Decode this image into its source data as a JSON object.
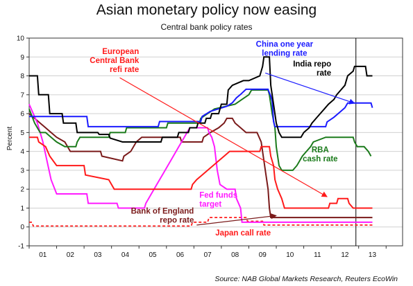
{
  "chart_data": {
    "type": "line",
    "title": "Asian monetary policy now easing",
    "subtitle": "Central bank policy rates",
    "ylabel": "Percent",
    "source": "Source: NAB Global Markets Research, Reuters EcoWin",
    "ylim": [
      -1,
      10
    ],
    "xlim": [
      2000.0,
      2013.6
    ],
    "y_ticks": [
      "-1",
      "0",
      "1",
      "2",
      "3",
      "4",
      "5",
      "6",
      "7",
      "8",
      "9",
      "10"
    ],
    "x_ticks": [
      "01",
      "02",
      "03",
      "04",
      "05",
      "06",
      "07",
      "08",
      "09",
      "10",
      "11",
      "12",
      "13"
    ],
    "vline_x": 2011.9,
    "colors": {
      "india": "#000000",
      "china": "#1a1aff",
      "rba": "#1a7a1a",
      "ecb": "#ff1a1a",
      "fed": "#ff1aff",
      "boe": "#7a1a1a",
      "japan": "#ff1a1a"
    },
    "series": [
      {
        "name": "India repo rate",
        "key": "india",
        "width": 2,
        "dash": "",
        "points": [
          [
            2000.0,
            8.0
          ],
          [
            2000.3,
            8.0
          ],
          [
            2000.35,
            7.0
          ],
          [
            2000.7,
            7.0
          ],
          [
            2000.75,
            6.0
          ],
          [
            2001.2,
            6.0
          ],
          [
            2001.25,
            5.5
          ],
          [
            2001.7,
            5.5
          ],
          [
            2001.75,
            5.0
          ],
          [
            2002.5,
            5.0
          ],
          [
            2002.55,
            4.9
          ],
          [
            2002.9,
            4.9
          ],
          [
            2002.95,
            4.7
          ],
          [
            2003.4,
            4.5
          ],
          [
            2003.9,
            4.5
          ],
          [
            2004.2,
            4.5
          ],
          [
            2004.8,
            4.5
          ],
          [
            2004.85,
            4.75
          ],
          [
            2005.4,
            4.75
          ],
          [
            2005.45,
            5.0
          ],
          [
            2005.8,
            5.0
          ],
          [
            2005.85,
            5.25
          ],
          [
            2006.1,
            5.25
          ],
          [
            2006.15,
            5.5
          ],
          [
            2006.4,
            5.5
          ],
          [
            2006.45,
            5.75
          ],
          [
            2006.6,
            5.75
          ],
          [
            2006.65,
            6.0
          ],
          [
            2006.9,
            6.0
          ],
          [
            2006.95,
            6.25
          ],
          [
            2007.0,
            6.5
          ],
          [
            2007.2,
            6.5
          ],
          [
            2007.25,
            7.25
          ],
          [
            2007.4,
            7.5
          ],
          [
            2007.8,
            7.75
          ],
          [
            2008.0,
            7.75
          ],
          [
            2008.4,
            8.0
          ],
          [
            2008.5,
            8.5
          ],
          [
            2008.55,
            9.0
          ],
          [
            2008.75,
            9.0
          ],
          [
            2008.8,
            7.5
          ],
          [
            2008.9,
            6.5
          ],
          [
            2009.0,
            5.5
          ],
          [
            2009.1,
            5.0
          ],
          [
            2009.2,
            4.75
          ],
          [
            2009.9,
            4.75
          ],
          [
            2010.0,
            5.0
          ],
          [
            2010.2,
            5.25
          ],
          [
            2010.3,
            5.5
          ],
          [
            2010.45,
            5.75
          ],
          [
            2010.6,
            6.0
          ],
          [
            2010.75,
            6.25
          ],
          [
            2010.9,
            6.5
          ],
          [
            2011.1,
            6.75
          ],
          [
            2011.2,
            7.0
          ],
          [
            2011.35,
            7.25
          ],
          [
            2011.5,
            7.5
          ],
          [
            2011.6,
            8.0
          ],
          [
            2011.8,
            8.25
          ],
          [
            2011.85,
            8.5
          ],
          [
            2012.25,
            8.5
          ],
          [
            2012.3,
            8.0
          ],
          [
            2012.5,
            8.0
          ]
        ]
      },
      {
        "name": "China one year lending rate",
        "key": "china",
        "width": 2,
        "dash": "",
        "points": [
          [
            2000.0,
            5.85
          ],
          [
            2001.5,
            5.85
          ],
          [
            2002.1,
            5.85
          ],
          [
            2002.15,
            5.31
          ],
          [
            2004.7,
            5.31
          ],
          [
            2004.75,
            5.58
          ],
          [
            2006.25,
            5.58
          ],
          [
            2006.3,
            5.85
          ],
          [
            2006.6,
            6.12
          ],
          [
            2007.2,
            6.39
          ],
          [
            2007.4,
            6.57
          ],
          [
            2007.55,
            6.84
          ],
          [
            2007.7,
            7.02
          ],
          [
            2007.9,
            7.29
          ],
          [
            2008.7,
            7.29
          ],
          [
            2008.72,
            7.2
          ],
          [
            2008.8,
            6.93
          ],
          [
            2008.85,
            6.66
          ],
          [
            2008.9,
            5.58
          ],
          [
            2008.95,
            5.31
          ],
          [
            2010.8,
            5.31
          ],
          [
            2010.85,
            5.56
          ],
          [
            2011.1,
            5.81
          ],
          [
            2011.3,
            6.06
          ],
          [
            2011.5,
            6.31
          ],
          [
            2011.6,
            6.56
          ],
          [
            2012.45,
            6.56
          ],
          [
            2012.5,
            6.31
          ]
        ]
      },
      {
        "name": "RBA cash rate",
        "key": "rba",
        "width": 2,
        "dash": "",
        "points": [
          [
            2000.0,
            6.25
          ],
          [
            2000.2,
            5.5
          ],
          [
            2000.4,
            5.0
          ],
          [
            2000.6,
            5.0
          ],
          [
            2000.8,
            4.75
          ],
          [
            2001.0,
            4.5
          ],
          [
            2001.3,
            4.25
          ],
          [
            2001.7,
            4.25
          ],
          [
            2001.75,
            4.5
          ],
          [
            2001.85,
            4.75
          ],
          [
            2002.9,
            4.75
          ],
          [
            2002.95,
            5.0
          ],
          [
            2003.5,
            5.0
          ],
          [
            2003.55,
            5.25
          ],
          [
            2005.0,
            5.25
          ],
          [
            2005.05,
            5.5
          ],
          [
            2006.2,
            5.5
          ],
          [
            2006.25,
            5.75
          ],
          [
            2006.5,
            6.0
          ],
          [
            2006.75,
            6.25
          ],
          [
            2007.5,
            6.5
          ],
          [
            2007.75,
            6.75
          ],
          [
            2008.0,
            7.0
          ],
          [
            2008.1,
            7.25
          ],
          [
            2008.7,
            7.25
          ],
          [
            2008.75,
            7.0
          ],
          [
            2008.85,
            6.0
          ],
          [
            2008.95,
            5.25
          ],
          [
            2009.0,
            4.25
          ],
          [
            2009.1,
            3.25
          ],
          [
            2009.2,
            3.0
          ],
          [
            2009.6,
            3.0
          ],
          [
            2009.75,
            3.25
          ],
          [
            2009.85,
            3.5
          ],
          [
            2009.95,
            3.75
          ],
          [
            2010.1,
            4.0
          ],
          [
            2010.25,
            4.25
          ],
          [
            2010.35,
            4.5
          ],
          [
            2010.8,
            4.75
          ],
          [
            2011.8,
            4.75
          ],
          [
            2011.85,
            4.5
          ],
          [
            2011.95,
            4.25
          ],
          [
            2012.2,
            4.25
          ],
          [
            2012.35,
            4.0
          ],
          [
            2012.45,
            3.75
          ]
        ]
      },
      {
        "name": "European Central Bank refi rate",
        "key": "ecb",
        "width": 2,
        "dash": "",
        "points": [
          [
            2000.0,
            4.75
          ],
          [
            2000.3,
            4.75
          ],
          [
            2000.35,
            4.5
          ],
          [
            2000.6,
            4.25
          ],
          [
            2000.75,
            3.75
          ],
          [
            2001.0,
            3.25
          ],
          [
            2002.0,
            3.25
          ],
          [
            2002.05,
            2.75
          ],
          [
            2002.9,
            2.5
          ],
          [
            2003.1,
            2.0
          ],
          [
            2005.9,
            2.0
          ],
          [
            2005.95,
            2.25
          ],
          [
            2006.1,
            2.5
          ],
          [
            2006.3,
            2.75
          ],
          [
            2006.5,
            3.0
          ],
          [
            2006.7,
            3.25
          ],
          [
            2006.9,
            3.5
          ],
          [
            2007.1,
            3.75
          ],
          [
            2007.3,
            4.0
          ],
          [
            2008.4,
            4.0
          ],
          [
            2008.45,
            4.25
          ],
          [
            2008.75,
            4.25
          ],
          [
            2008.8,
            3.75
          ],
          [
            2008.9,
            3.25
          ],
          [
            2008.95,
            2.5
          ],
          [
            2009.05,
            2.0
          ],
          [
            2009.2,
            1.5
          ],
          [
            2009.3,
            1.0
          ],
          [
            2010.9,
            1.0
          ],
          [
            2010.95,
            1.25
          ],
          [
            2011.2,
            1.25
          ],
          [
            2011.25,
            1.5
          ],
          [
            2011.6,
            1.5
          ],
          [
            2011.65,
            1.25
          ],
          [
            2011.8,
            1.0
          ],
          [
            2012.5,
            1.0
          ]
        ]
      },
      {
        "name": "Fed funds target",
        "key": "fed",
        "width": 2,
        "dash": "",
        "points": [
          [
            2000.0,
            6.5
          ],
          [
            2000.3,
            5.5
          ],
          [
            2000.5,
            4.5
          ],
          [
            2000.65,
            3.5
          ],
          [
            2000.8,
            2.5
          ],
          [
            2001.0,
            1.75
          ],
          [
            2001.1,
            1.75
          ],
          [
            2002.1,
            1.75
          ],
          [
            2002.15,
            1.25
          ],
          [
            2003.2,
            1.25
          ],
          [
            2003.25,
            1.0
          ],
          [
            2004.2,
            1.0
          ],
          [
            2004.25,
            1.25
          ],
          [
            2004.45,
            1.75
          ],
          [
            2004.65,
            2.25
          ],
          [
            2004.85,
            2.75
          ],
          [
            2005.05,
            3.25
          ],
          [
            2005.25,
            3.75
          ],
          [
            2005.45,
            4.25
          ],
          [
            2005.65,
            4.75
          ],
          [
            2005.85,
            5.25
          ],
          [
            2006.5,
            5.25
          ],
          [
            2006.55,
            5.0
          ],
          [
            2006.65,
            4.75
          ],
          [
            2006.75,
            4.25
          ],
          [
            2006.85,
            3.0
          ],
          [
            2006.95,
            2.25
          ],
          [
            2007.2,
            2.0
          ],
          [
            2007.5,
            2.0
          ],
          [
            2007.55,
            1.5
          ],
          [
            2007.7,
            1.0
          ],
          [
            2007.75,
            0.25
          ],
          [
            2012.5,
            0.25
          ]
        ]
      },
      {
        "name": "Bank of England repo rate",
        "key": "boe",
        "width": 2,
        "dash": "",
        "points": [
          [
            2000.0,
            6.0
          ],
          [
            2000.2,
            5.75
          ],
          [
            2000.4,
            5.5
          ],
          [
            2000.6,
            5.25
          ],
          [
            2000.8,
            5.0
          ],
          [
            2001.0,
            4.75
          ],
          [
            2001.3,
            4.5
          ],
          [
            2001.5,
            4.0
          ],
          [
            2002.6,
            4.0
          ],
          [
            2002.65,
            3.75
          ],
          [
            2003.4,
            3.5
          ],
          [
            2003.45,
            3.75
          ],
          [
            2003.7,
            4.0
          ],
          [
            2003.9,
            4.5
          ],
          [
            2004.1,
            4.75
          ],
          [
            2005.5,
            4.75
          ],
          [
            2005.55,
            4.5
          ],
          [
            2006.3,
            4.5
          ],
          [
            2006.35,
            4.75
          ],
          [
            2006.6,
            5.0
          ],
          [
            2006.9,
            5.25
          ],
          [
            2007.1,
            5.5
          ],
          [
            2007.2,
            5.75
          ],
          [
            2007.4,
            5.75
          ],
          [
            2007.5,
            5.5
          ],
          [
            2007.7,
            5.25
          ],
          [
            2007.9,
            5.0
          ],
          [
            2008.3,
            5.0
          ],
          [
            2008.45,
            4.5
          ],
          [
            2008.6,
            3.0
          ],
          [
            2008.7,
            2.0
          ],
          [
            2008.75,
            1.0
          ],
          [
            2008.8,
            0.5
          ],
          [
            2012.5,
            0.5
          ]
        ]
      },
      {
        "name": "Japan call rate",
        "key": "japan",
        "width": 1.8,
        "dash": "4,3",
        "points": [
          [
            2000.0,
            0.25
          ],
          [
            2000.1,
            0.25
          ],
          [
            2000.15,
            0.05
          ],
          [
            2005.9,
            0.05
          ],
          [
            2005.95,
            0.25
          ],
          [
            2006.5,
            0.25
          ],
          [
            2006.55,
            0.5
          ],
          [
            2007.9,
            0.5
          ],
          [
            2007.95,
            0.3
          ],
          [
            2008.5,
            0.3
          ],
          [
            2008.55,
            0.1
          ],
          [
            2012.5,
            0.1
          ]
        ]
      }
    ],
    "annotations": [
      {
        "key": "ecb",
        "lines": [
          "European",
          "Central Bank",
          "refi rate"
        ],
        "x": 2004.0,
        "y": 9.15,
        "anchor": "end",
        "arrow": {
          "from": [
            2003.3,
            7.9
          ],
          "to": [
            2010.85,
            1.6
          ],
          "head": "end"
        }
      },
      {
        "key": "china",
        "lines": [
          "China one year",
          "lending rate"
        ],
        "x": 2009.3,
        "y": 9.55,
        "anchor": "middle",
        "arrow": {
          "from": [
            2008.6,
            8.15
          ],
          "to": [
            2011.85,
            6.55
          ],
          "head": "end"
        }
      },
      {
        "key": "india",
        "lines": [
          "India repo",
          "rate"
        ],
        "x": 2011.0,
        "y": 8.5,
        "anchor": "end",
        "arrow": null
      },
      {
        "key": "rba",
        "lines": [
          "RBA",
          "cash rate"
        ],
        "x": 2010.6,
        "y": 3.95,
        "anchor": "middle",
        "arrow": null
      },
      {
        "key": "fed",
        "lines": [
          "Fed funds",
          "target"
        ],
        "x": 2006.2,
        "y": 1.55,
        "anchor": "start",
        "arrow": null
      },
      {
        "key": "boe",
        "lines": [
          "Bank of England",
          "repo rate"
        ],
        "x": 2006.0,
        "y": 0.7,
        "anchor": "end",
        "arrow": {
          "from": [
            2006.1,
            0.1
          ],
          "to": [
            2009.0,
            0.6
          ],
          "head": "end"
        }
      },
      {
        "key": "japan",
        "lines": [
          "Japan call rate"
        ],
        "x": 2008.8,
        "y": -0.45,
        "anchor": "end",
        "arrow": null
      }
    ]
  }
}
